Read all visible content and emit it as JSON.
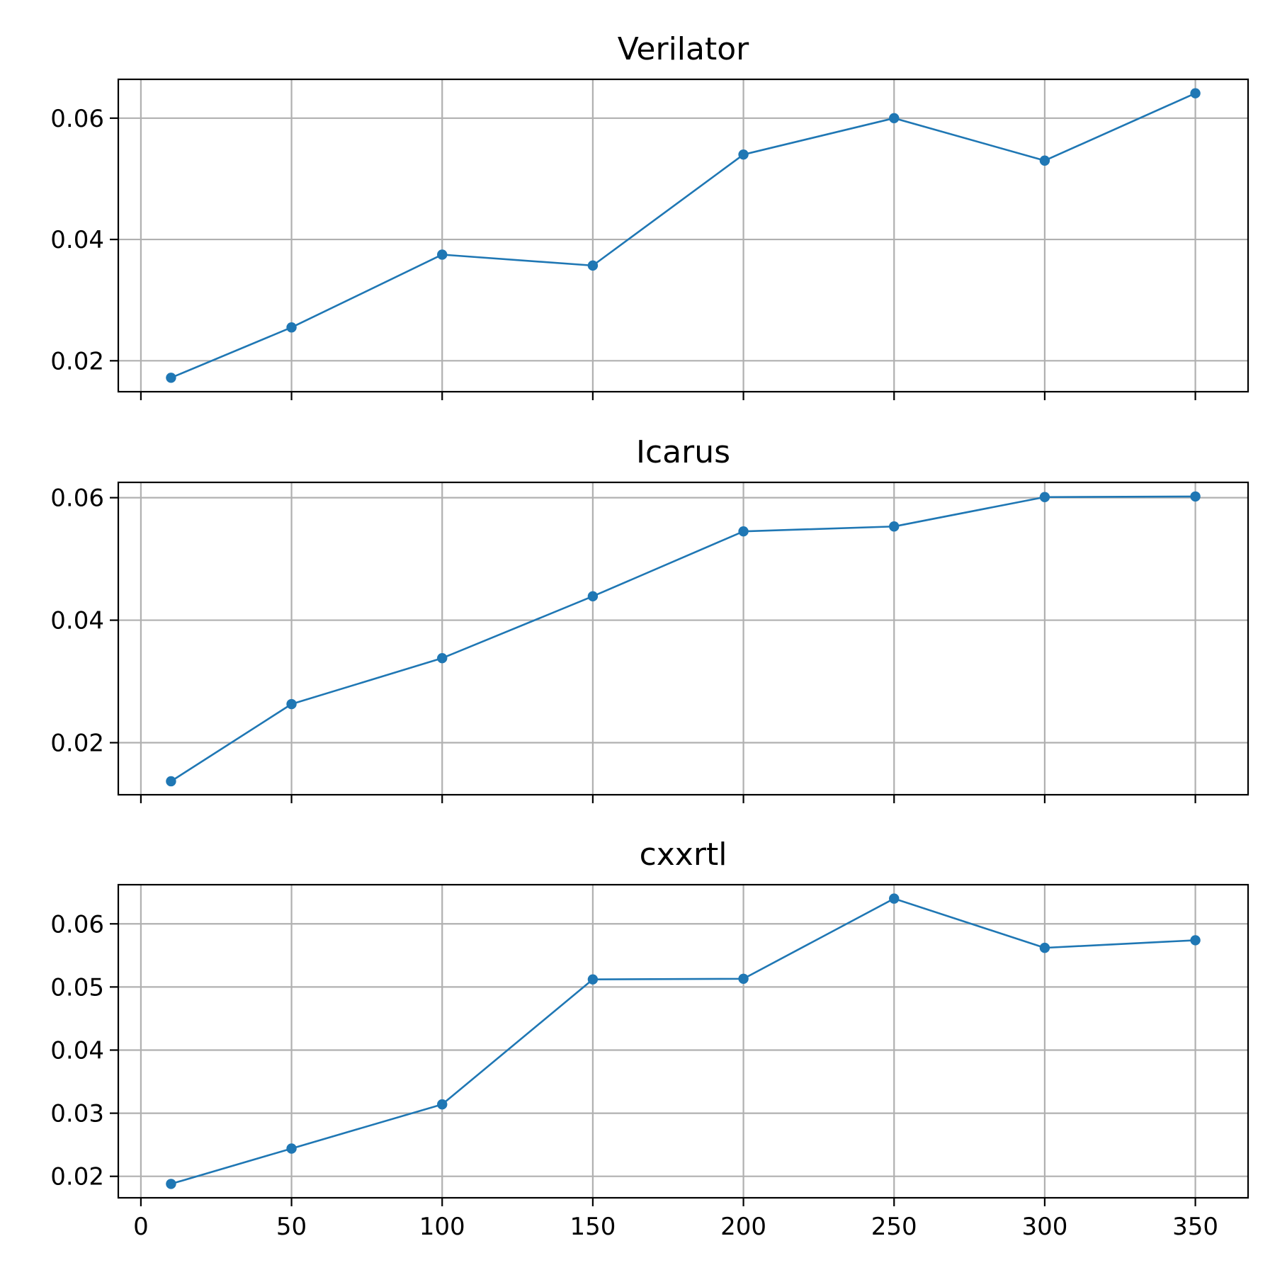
{
  "chart_data": [
    {
      "type": "line",
      "title": "Verilator",
      "xlabel": "",
      "ylabel": "",
      "x": [
        10,
        50,
        100,
        150,
        200,
        250,
        300,
        350
      ],
      "series": [
        {
          "values": [
            0.0172,
            0.0255,
            0.0375,
            0.0357,
            0.054,
            0.06,
            0.053,
            0.0641
          ]
        }
      ],
      "xlim": [
        -7.5,
        367.5
      ],
      "ylim": [
        0.0149,
        0.0664
      ],
      "xticks": [
        0,
        50,
        100,
        150,
        200,
        250,
        300,
        350
      ],
      "yticks": [
        0.02,
        0.04,
        0.06
      ],
      "xtick_labels_visible": false,
      "grid": true
    },
    {
      "type": "line",
      "title": "Icarus",
      "xlabel": "",
      "ylabel": "",
      "x": [
        10,
        50,
        100,
        150,
        200,
        250,
        300,
        350
      ],
      "series": [
        {
          "values": [
            0.0137,
            0.0263,
            0.0338,
            0.0439,
            0.0545,
            0.0553,
            0.0601,
            0.0602
          ]
        }
      ],
      "xlim": [
        -7.5,
        367.5
      ],
      "ylim": [
        0.0115,
        0.0625
      ],
      "xticks": [
        0,
        50,
        100,
        150,
        200,
        250,
        300,
        350
      ],
      "yticks": [
        0.02,
        0.04,
        0.06
      ],
      "xtick_labels_visible": false,
      "grid": true
    },
    {
      "type": "line",
      "title": "cxxrtl",
      "xlabel": "",
      "ylabel": "",
      "x": [
        10,
        50,
        100,
        150,
        200,
        250,
        300,
        350
      ],
      "series": [
        {
          "values": [
            0.0188,
            0.0244,
            0.0314,
            0.0512,
            0.0513,
            0.064,
            0.0562,
            0.0574
          ]
        }
      ],
      "xlim": [
        -7.5,
        367.5
      ],
      "ylim": [
        0.0166,
        0.0662
      ],
      "xticks": [
        0,
        50,
        100,
        150,
        200,
        250,
        300,
        350
      ],
      "yticks": [
        0.02,
        0.03,
        0.04,
        0.05,
        0.06
      ],
      "xtick_labels_visible": true,
      "grid": true
    }
  ],
  "colors": {
    "line": "#1f77b4",
    "grid": "#b0b0b0",
    "axes": "#000000"
  }
}
